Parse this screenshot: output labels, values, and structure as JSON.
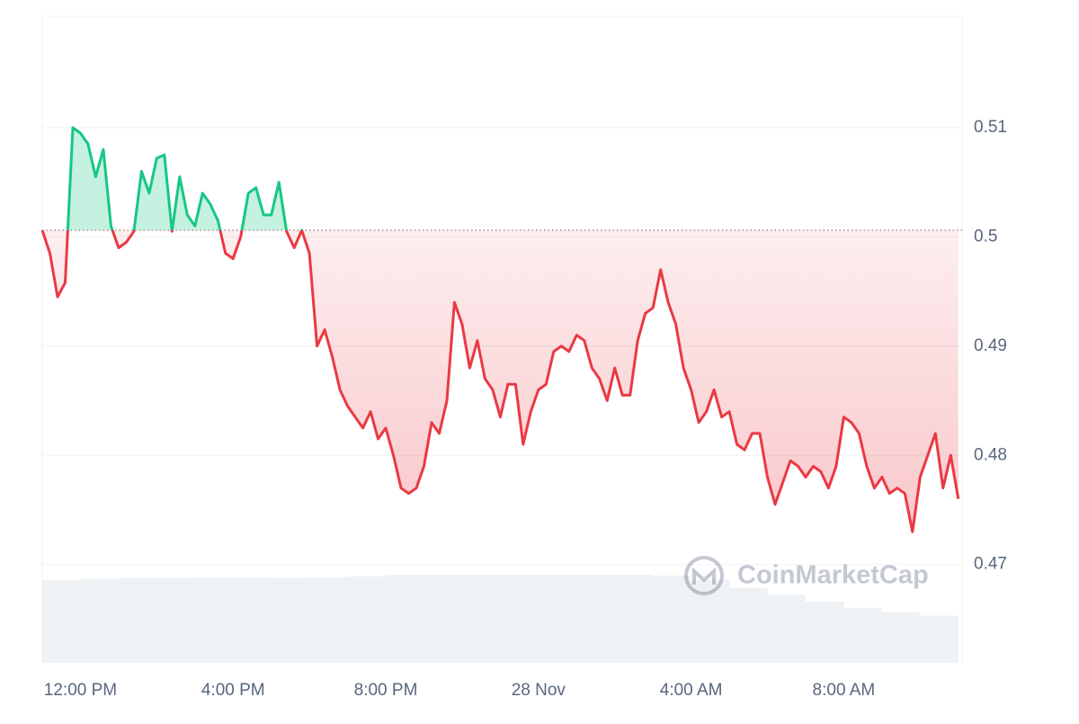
{
  "chart_data": {
    "type": "line",
    "watermark": "CoinMarketCap",
    "baseline": 0.5006,
    "up_color": "#16c784",
    "down_color": "#ea3943",
    "xlim": [
      11.0,
      35.1
    ],
    "xticks": [
      {
        "value": 12,
        "label": "12:00 PM"
      },
      {
        "value": 16,
        "label": "4:00 PM"
      },
      {
        "value": 20,
        "label": "8:00 PM"
      },
      {
        "value": 24,
        "label": "28 Nov"
      },
      {
        "value": 28,
        "label": "4:00 AM"
      },
      {
        "value": 32,
        "label": "8:00 AM"
      }
    ],
    "ylim": [
      0.461,
      0.5202
    ],
    "yticks": [
      0.47,
      0.48,
      0.49,
      0.5,
      0.51
    ],
    "y2lim": [
      0,
      740
    ],
    "grid": true,
    "x": [
      11.0,
      11.2,
      11.4,
      11.6,
      11.8,
      12.0,
      12.2,
      12.4,
      12.6,
      12.8,
      13.0,
      13.2,
      13.4,
      13.6,
      13.8,
      14.0,
      14.2,
      14.4,
      14.6,
      14.8,
      15.0,
      15.2,
      15.4,
      15.6,
      15.8,
      16.0,
      16.2,
      16.4,
      16.6,
      16.8,
      17.0,
      17.2,
      17.4,
      17.6,
      17.8,
      18.0,
      18.2,
      18.4,
      18.6,
      18.8,
      19.0,
      19.2,
      19.4,
      19.6,
      19.8,
      20.0,
      20.2,
      20.4,
      20.6,
      20.8,
      21.0,
      21.2,
      21.4,
      21.6,
      21.8,
      22.0,
      22.2,
      22.4,
      22.6,
      22.8,
      23.0,
      23.2,
      23.4,
      23.6,
      23.8,
      24.0,
      24.2,
      24.4,
      24.6,
      24.8,
      25.0,
      25.2,
      25.4,
      25.6,
      25.8,
      26.0,
      26.2,
      26.4,
      26.6,
      26.8,
      27.0,
      27.2,
      27.4,
      27.6,
      27.8,
      28.0,
      28.2,
      28.4,
      28.6,
      28.8,
      29.0,
      29.2,
      29.4,
      29.6,
      29.8,
      30.0,
      30.2,
      30.4,
      30.6,
      30.8,
      31.0,
      31.2,
      31.4,
      31.6,
      31.8,
      32.0,
      32.2,
      32.4,
      32.6,
      32.8,
      33.0,
      33.2,
      33.4,
      33.6,
      33.8,
      34.0,
      34.2,
      34.4,
      34.6,
      34.8,
      35.0
    ],
    "series": [
      {
        "name": "Price",
        "values": [
          0.5006,
          0.4985,
          0.4945,
          0.4958,
          0.51,
          0.5095,
          0.5085,
          0.5055,
          0.508,
          0.501,
          0.499,
          0.4995,
          0.5005,
          0.506,
          0.504,
          0.5072,
          0.5075,
          0.5005,
          0.5055,
          0.502,
          0.501,
          0.504,
          0.503,
          0.5015,
          0.4985,
          0.498,
          0.5,
          0.504,
          0.5045,
          0.502,
          0.502,
          0.505,
          0.5005,
          0.499,
          0.5006,
          0.4985,
          0.49,
          0.4915,
          0.489,
          0.486,
          0.4845,
          0.4835,
          0.4825,
          0.484,
          0.4815,
          0.4825,
          0.48,
          0.477,
          0.4765,
          0.477,
          0.479,
          0.483,
          0.482,
          0.485,
          0.494,
          0.492,
          0.488,
          0.4905,
          0.487,
          0.486,
          0.4835,
          0.4865,
          0.4865,
          0.481,
          0.484,
          0.486,
          0.4865,
          0.4895,
          0.49,
          0.4895,
          0.491,
          0.4905,
          0.488,
          0.487,
          0.485,
          0.488,
          0.4855,
          0.4855,
          0.4905,
          0.493,
          0.4935,
          0.497,
          0.494,
          0.492,
          0.488,
          0.486,
          0.483,
          0.484,
          0.486,
          0.4835,
          0.484,
          0.481,
          0.4805,
          0.482,
          0.482,
          0.478,
          0.4755,
          0.4775,
          0.4795,
          0.479,
          0.478,
          0.479,
          0.4785,
          0.477,
          0.479,
          0.4835,
          0.483,
          0.482,
          0.479,
          0.477,
          0.478,
          0.4765,
          0.477,
          0.4765,
          0.473,
          0.478,
          0.48,
          0.482,
          0.477,
          0.48,
          0.476
        ]
      }
    ],
    "volume": {
      "name": "Volume",
      "color": "#eff2f5",
      "x": [
        11,
        12,
        13,
        14,
        15,
        16,
        17,
        18,
        19,
        20,
        21,
        22,
        23,
        24,
        25,
        26,
        27,
        28,
        29,
        30,
        31,
        32,
        33,
        34
      ],
      "values": [
        95,
        96,
        97,
        97,
        98,
        98,
        97,
        98,
        99,
        101,
        101,
        101,
        101,
        101,
        101,
        101,
        100,
        95,
        86,
        78,
        70,
        63,
        58,
        54
      ],
      "axis": "y2"
    }
  }
}
